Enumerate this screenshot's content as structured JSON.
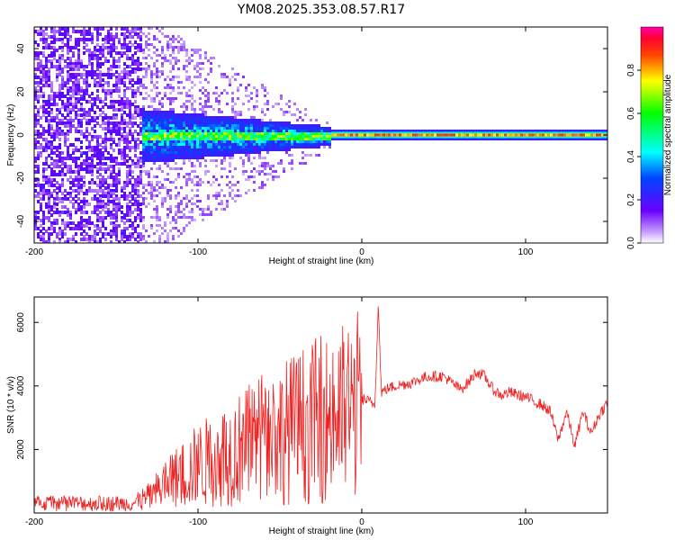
{
  "figure": {
    "title": "YM08.2025.353.08.57.R17"
  },
  "chart_data": [
    {
      "type": "heatmap",
      "name": "spectrogram",
      "xlabel": "Height of straight line (km)",
      "ylabel": "Frequency (Hz)",
      "xlim": [
        -200,
        150
      ],
      "ylim": [
        -50,
        50
      ],
      "xticks": [
        -200,
        -100,
        0,
        100
      ],
      "yticks": [
        -40,
        -20,
        0,
        20,
        40
      ],
      "description_regions": [
        {
          "x_range": [
            -200,
            -135
          ],
          "level": 0.15,
          "type": "broadband noise"
        },
        {
          "x_range": [
            -135,
            -20
          ],
          "level": 0.5,
          "type": "energy band around 0 Hz"
        },
        {
          "x_range": [
            -20,
            150
          ],
          "level": 0.9,
          "type": "narrow tone at 0 Hz"
        }
      ],
      "colorbar": {
        "label": "Normalized spectral amplitude",
        "range": [
          0.0,
          1.0
        ],
        "ticks": [
          "0.0",
          "0.2",
          "0.4",
          "0.6",
          "0.8"
        ],
        "tick_values": [
          0.0,
          0.2,
          0.4,
          0.6,
          0.8
        ]
      }
    },
    {
      "type": "line",
      "name": "snr",
      "xlabel": "Height of straight line (km)",
      "ylabel": "SNR (10 * v/v)",
      "xlim": [
        -200,
        150
      ],
      "ylim": [
        0,
        6800
      ],
      "xticks": [
        -200,
        -100,
        0,
        100
      ],
      "yticks": [
        2000,
        4000,
        6000
      ],
      "color": "#ee2222",
      "series": [
        {
          "name": "SNR",
          "x": [
            -200,
            -180,
            -160,
            -140,
            -130,
            -120,
            -110,
            -100,
            -90,
            -80,
            -70,
            -60,
            -50,
            -40,
            -30,
            -20,
            -15,
            -10,
            -5,
            0,
            5,
            8,
            10,
            12,
            15,
            20,
            30,
            40,
            50,
            55,
            60,
            65,
            70,
            75,
            80,
            85,
            90,
            100,
            110,
            115,
            120,
            125,
            130,
            135,
            140,
            145,
            150
          ],
          "y": [
            300,
            300,
            300,
            300,
            500,
            900,
            1200,
            1500,
            1700,
            1900,
            2100,
            2400,
            2500,
            2700,
            2900,
            3000,
            3100,
            3200,
            3300,
            3600,
            3500,
            3400,
            6600,
            3800,
            3900,
            4000,
            4100,
            4300,
            4300,
            4100,
            3900,
            4100,
            4450,
            4300,
            3900,
            3700,
            3800,
            3650,
            3400,
            3200,
            2300,
            3200,
            2100,
            3200,
            2500,
            3100,
            3500
          ]
        }
      ]
    }
  ]
}
